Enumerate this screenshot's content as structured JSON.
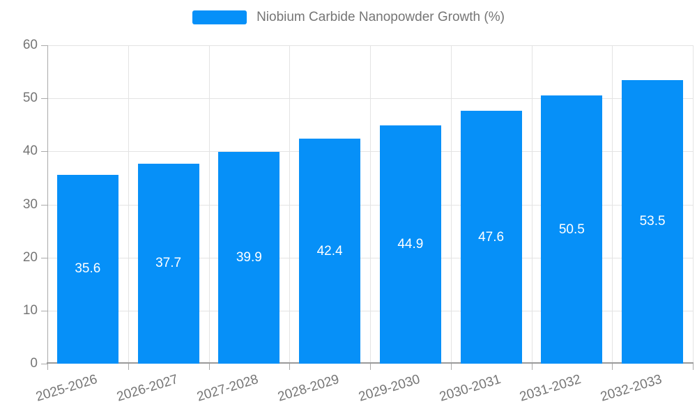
{
  "legend": {
    "label": "Niobium Carbide Nanopowder Growth (%)"
  },
  "colors": {
    "bar": "#0690f8",
    "grid": "#e3e3e3",
    "axis": "#999999",
    "tick": "#aaaaaa",
    "axis_label": "#757575",
    "value_label": "#ffffff"
  },
  "chart_data": {
    "type": "bar",
    "title": "Niobium Carbide Nanopowder Growth (%)",
    "categories": [
      "2025-2026",
      "2026-2027",
      "2027-2028",
      "2028-2029",
      "2029-2030",
      "2030-2031",
      "2031-2032",
      "2032-2033"
    ],
    "values": [
      35.6,
      37.7,
      39.9,
      42.4,
      44.9,
      47.6,
      50.5,
      53.5
    ],
    "xlabel": "",
    "ylabel": "",
    "ylim": [
      0,
      60
    ],
    "ytick_step": 10,
    "yticks": [
      0,
      10,
      20,
      30,
      40,
      50,
      60
    ],
    "grid": true,
    "legend_position": "top",
    "value_labels": "inside-center"
  }
}
